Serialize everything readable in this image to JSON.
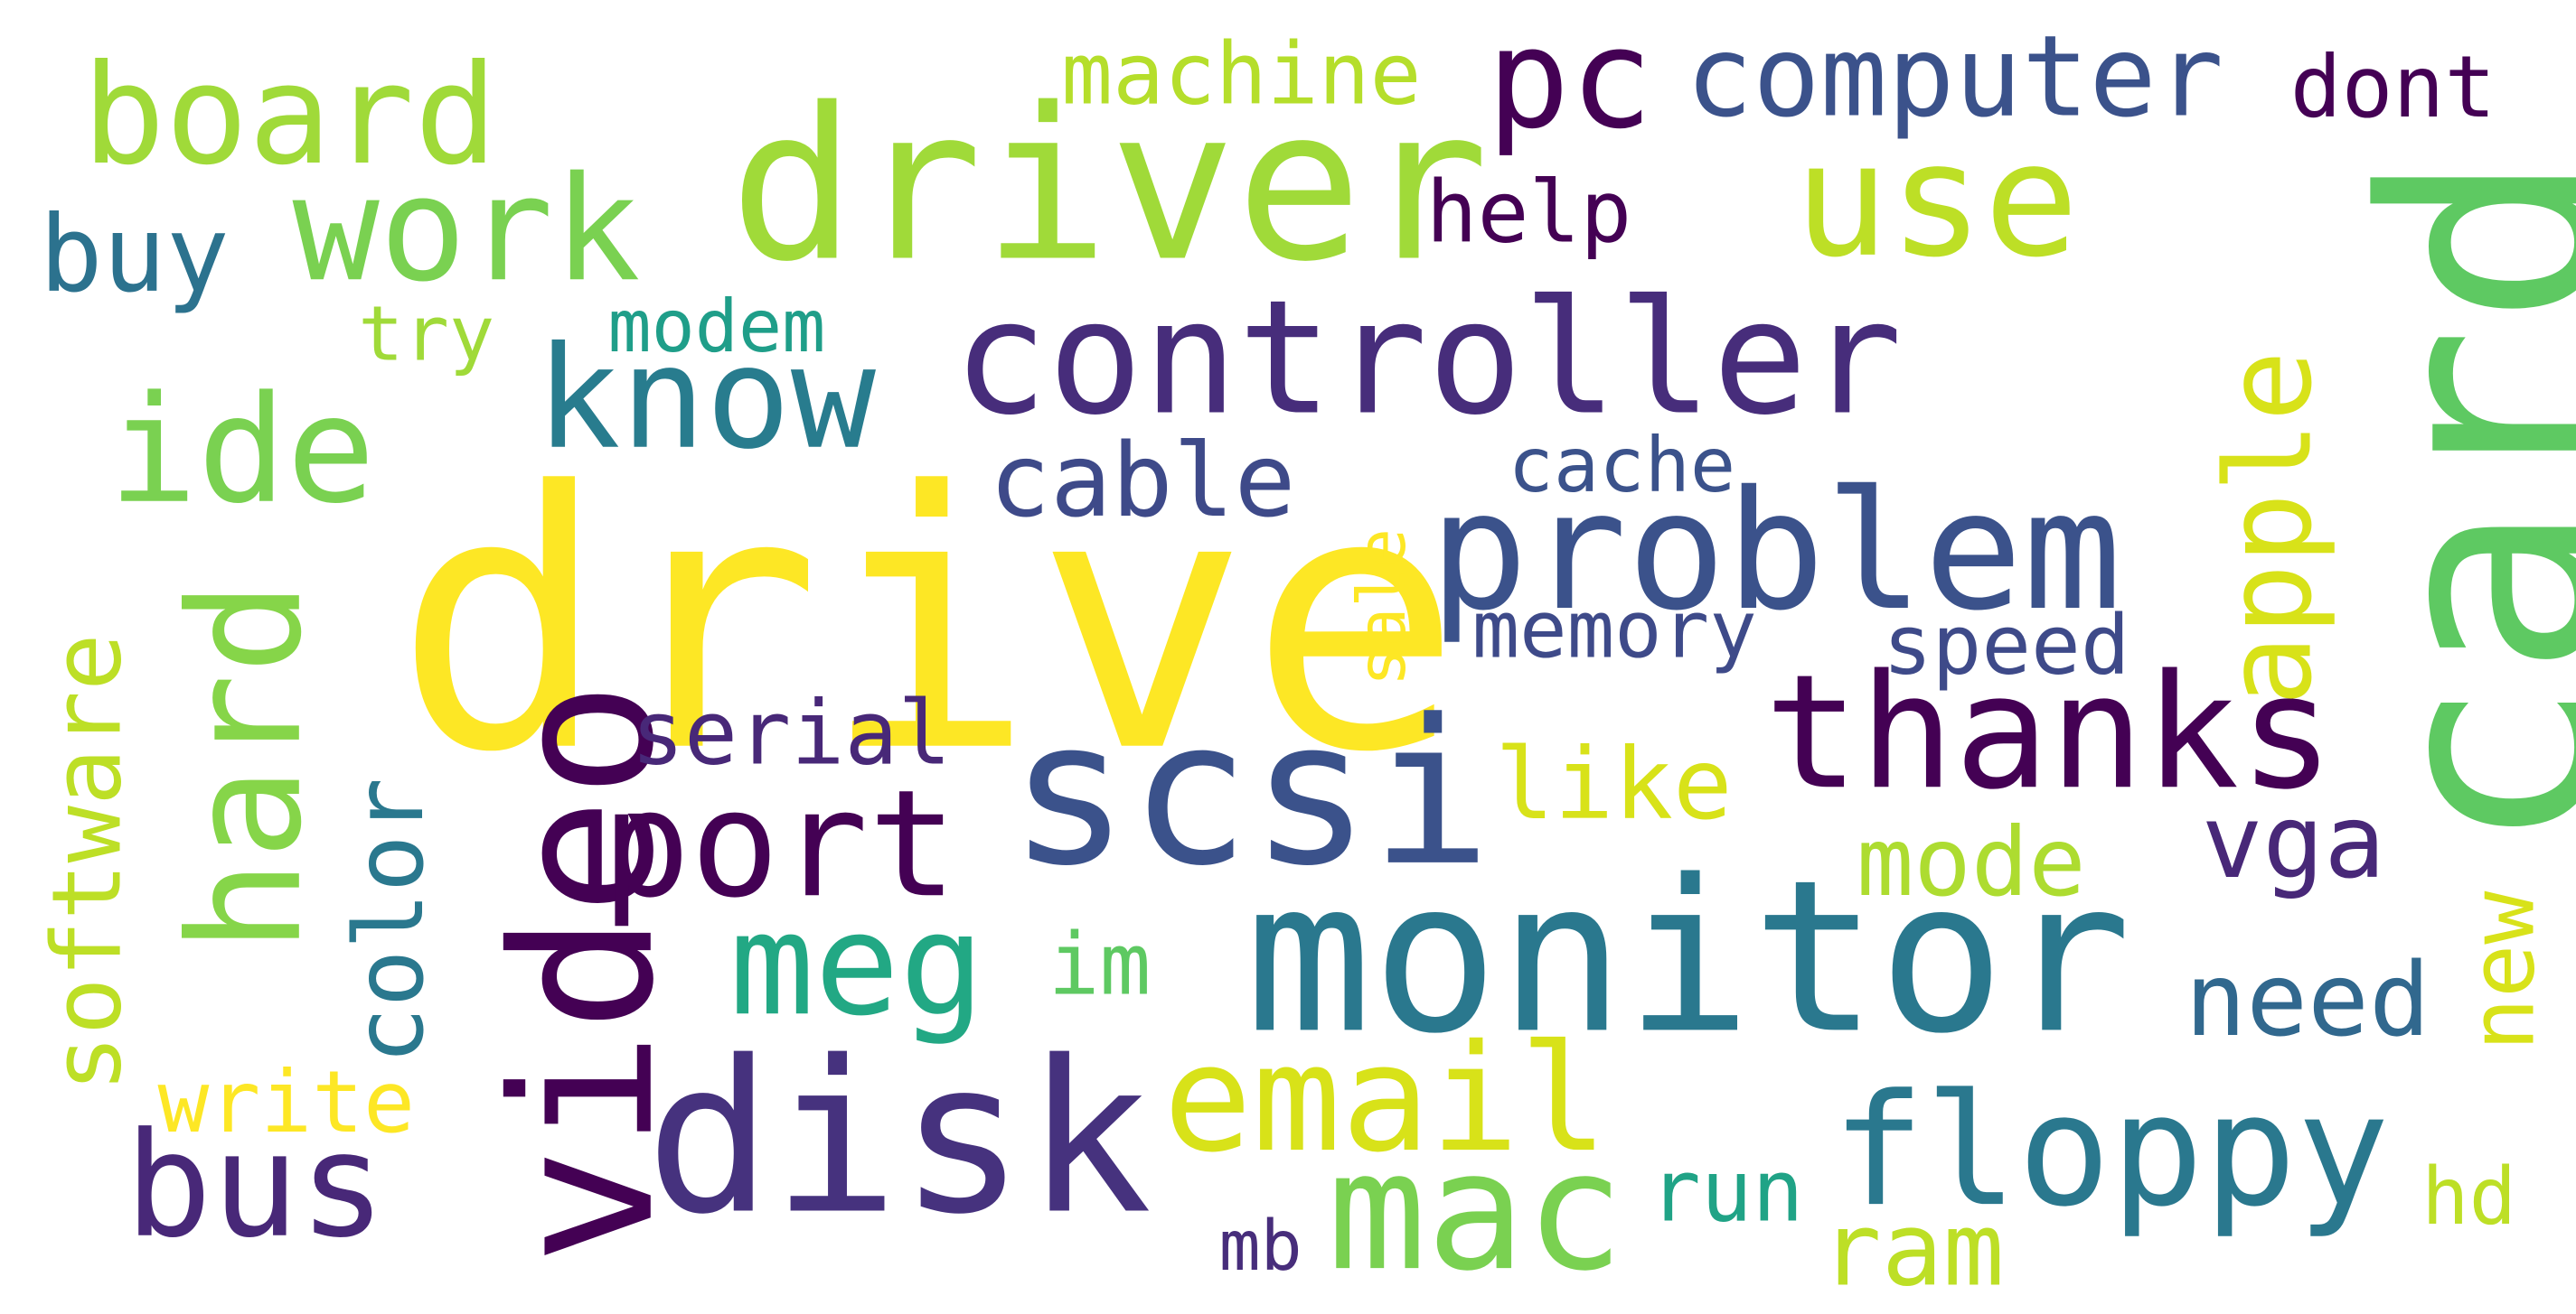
{
  "words": {
    "drive": "drive",
    "card": "card",
    "driver": "driver",
    "monitor": "monitor",
    "scsi": "scsi",
    "disk": "disk",
    "video": "video",
    "controller": "controller",
    "problem": "problem",
    "thanks": "thanks",
    "floppy": "floppy",
    "mac": "mac",
    "use": "use",
    "board": "board",
    "work": "work",
    "ide": "ide",
    "know": "know",
    "hard": "hard",
    "port": "port",
    "meg": "meg",
    "email": "email",
    "bus": "bus",
    "apple": "apple",
    "pc": "pc",
    "computer": "computer",
    "software": "software",
    "color": "color",
    "cable": "cable",
    "need": "need",
    "vga": "vga",
    "buy": "buy",
    "new": "new",
    "mode": "mode",
    "like": "like",
    "serial": "serial",
    "machine": "machine",
    "dont": "dont",
    "help": "help",
    "memory": "memory",
    "speed": "speed",
    "cache": "cache",
    "ram": "ram",
    "run": "run",
    "hd": "hd",
    "write": "write",
    "modem": "modem",
    "try": "try",
    "sale": "sale",
    "im": "im",
    "mb": "mb"
  },
  "palette": {
    "background": "#ffffff",
    "colormap": "viridis"
  }
}
